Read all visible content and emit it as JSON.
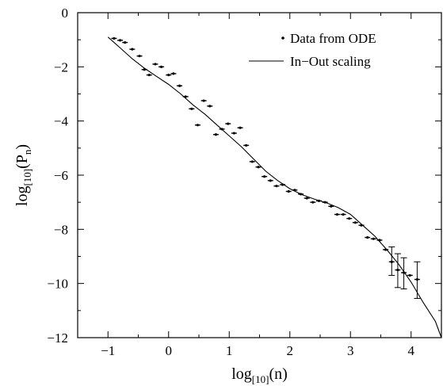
{
  "chart_data": {
    "type": "scatter",
    "xlim": [
      -1.5,
      4.5
    ],
    "ylim": [
      -12,
      0
    ],
    "x_ticks": [
      -1,
      0,
      1,
      2,
      3,
      4
    ],
    "y_ticks": [
      0,
      -2,
      -4,
      -6,
      -8,
      -10,
      -12
    ],
    "x_tick_labels": [
      "−1",
      "0",
      "1",
      "2",
      "3",
      "4"
    ],
    "y_tick_labels": [
      "0",
      "−2",
      "−4",
      "−6",
      "−8",
      "−10",
      "−12"
    ],
    "xlabel": {
      "base": "log",
      "sub": "[10]",
      "rest": "(n)"
    },
    "ylabel": {
      "base": "log",
      "sub": "[10]",
      "rest": "(P",
      "rest_sub": "n",
      "close": ")"
    },
    "grid": false,
    "legend_position": "top-right",
    "series": [
      {
        "name": "Data from ODE",
        "style": "points",
        "points": [
          [
            -0.9,
            -0.95
          ],
          [
            -0.8,
            -1.02
          ],
          [
            -0.72,
            -1.1
          ],
          [
            -0.6,
            -1.35
          ],
          [
            -0.48,
            -1.6
          ],
          [
            -0.4,
            -2.1
          ],
          [
            -0.32,
            -2.3
          ],
          [
            -0.22,
            -1.9
          ],
          [
            -0.12,
            -2.0
          ],
          [
            0.0,
            -2.3
          ],
          [
            0.08,
            -2.25
          ],
          [
            0.18,
            -2.7
          ],
          [
            0.28,
            -3.1
          ],
          [
            0.38,
            -3.55
          ],
          [
            0.48,
            -4.15
          ],
          [
            0.58,
            -3.25
          ],
          [
            0.68,
            -3.45
          ],
          [
            0.78,
            -4.5
          ],
          [
            0.88,
            -4.3
          ],
          [
            0.98,
            -4.1
          ],
          [
            1.08,
            -4.45
          ],
          [
            1.18,
            -4.25
          ],
          [
            1.28,
            -4.9
          ],
          [
            1.38,
            -5.5
          ],
          [
            1.48,
            -5.7
          ],
          [
            1.58,
            -6.05
          ],
          [
            1.68,
            -6.2
          ],
          [
            1.78,
            -6.4
          ],
          [
            1.88,
            -6.35
          ],
          [
            1.98,
            -6.6
          ],
          [
            2.08,
            -6.55
          ],
          [
            2.18,
            -6.7
          ],
          [
            2.28,
            -6.85
          ],
          [
            2.38,
            -7.0
          ],
          [
            2.48,
            -6.95
          ],
          [
            2.58,
            -7.0
          ],
          [
            2.68,
            -7.15
          ],
          [
            2.78,
            -7.45
          ],
          [
            2.88,
            -7.45
          ],
          [
            2.98,
            -7.6
          ],
          [
            3.08,
            -7.75
          ],
          [
            3.18,
            -7.85
          ],
          [
            3.28,
            -8.3
          ],
          [
            3.38,
            -8.35
          ],
          [
            3.48,
            -8.4
          ],
          [
            3.58,
            -8.75
          ],
          [
            3.68,
            -9.2
          ],
          [
            3.78,
            -9.5
          ],
          [
            3.88,
            -9.6
          ],
          [
            3.98,
            -9.7
          ],
          [
            4.1,
            -9.85
          ]
        ],
        "error_bars": [
          {
            "x": 3.68,
            "y": -9.2,
            "low": -9.7,
            "high": -8.65
          },
          {
            "x": 3.78,
            "y": -9.5,
            "low": -10.15,
            "high": -8.9
          },
          {
            "x": 3.88,
            "y": -9.6,
            "low": -10.2,
            "high": -9.05
          },
          {
            "x": 4.1,
            "y": -9.85,
            "low": -10.55,
            "high": -9.2
          }
        ]
      },
      {
        "name": "In−Out scaling",
        "style": "line",
        "points": [
          [
            -1.0,
            -0.9
          ],
          [
            -0.8,
            -1.3
          ],
          [
            -0.6,
            -1.7
          ],
          [
            -0.4,
            -2.05
          ],
          [
            -0.2,
            -2.35
          ],
          [
            0.0,
            -2.65
          ],
          [
            0.2,
            -3.0
          ],
          [
            0.4,
            -3.4
          ],
          [
            0.6,
            -3.75
          ],
          [
            0.8,
            -4.15
          ],
          [
            1.0,
            -4.55
          ],
          [
            1.2,
            -4.95
          ],
          [
            1.4,
            -5.4
          ],
          [
            1.6,
            -5.85
          ],
          [
            1.8,
            -6.2
          ],
          [
            2.0,
            -6.5
          ],
          [
            2.2,
            -6.72
          ],
          [
            2.4,
            -6.88
          ],
          [
            2.6,
            -7.02
          ],
          [
            2.8,
            -7.2
          ],
          [
            3.0,
            -7.45
          ],
          [
            3.2,
            -7.85
          ],
          [
            3.4,
            -8.25
          ],
          [
            3.6,
            -8.75
          ],
          [
            3.8,
            -9.3
          ],
          [
            4.0,
            -9.95
          ],
          [
            4.2,
            -10.7
          ],
          [
            4.4,
            -11.4
          ],
          [
            4.5,
            -12.0
          ]
        ]
      }
    ]
  }
}
